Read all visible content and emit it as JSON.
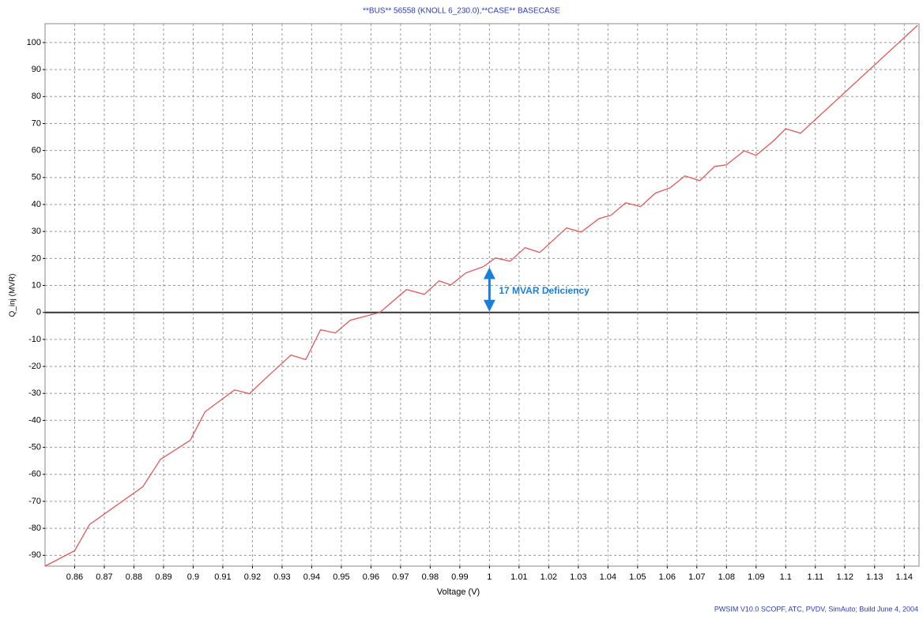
{
  "chart_data": {
    "type": "line",
    "title": "**BUS** 56558 (KNOLL  6_230.0),**CASE** BASECASE",
    "xlabel": "Voltage (V)",
    "ylabel": "Q_inj (MVR)",
    "footer": "PWSIM V10.0 SCOPF, ATC, PVDV, SimAuto; Build June 4, 2004",
    "xlim": [
      0.85,
      1.145
    ],
    "ylim": [
      -94,
      107
    ],
    "xticks": [
      0.86,
      0.87,
      0.88,
      0.89,
      0.9,
      0.91,
      0.92,
      0.93,
      0.94,
      0.95,
      0.96,
      0.97,
      0.98,
      0.99,
      1,
      1.01,
      1.02,
      1.03,
      1.04,
      1.05,
      1.06,
      1.07,
      1.08,
      1.09,
      1.1,
      1.11,
      1.12,
      1.13,
      1.14
    ],
    "yticks": [
      -90,
      -80,
      -70,
      -60,
      -50,
      -40,
      -30,
      -20,
      -10,
      0,
      10,
      20,
      30,
      40,
      50,
      60,
      70,
      80,
      90,
      100
    ],
    "grid": true,
    "series": [
      {
        "name": "Q_inj",
        "color": "#e05858",
        "x": [
          0.85,
          0.86,
          0.865,
          0.883,
          0.889,
          0.899,
          0.904,
          0.914,
          0.919,
          0.924,
          0.933,
          0.938,
          0.943,
          0.948,
          0.953,
          0.963,
          0.972,
          0.978,
          0.983,
          0.987,
          0.992,
          0.998,
          1.002,
          1.007,
          1.012,
          1.017,
          1.026,
          1.031,
          1.037,
          1.041,
          1.046,
          1.051,
          1.056,
          1.061,
          1.066,
          1.071,
          1.076,
          1.08,
          1.086,
          1.09,
          1.096,
          1.1,
          1.105,
          1.1445
        ],
        "values": [
          -94,
          -88.3,
          -78.6,
          -64.6,
          -54.4,
          -47.4,
          -36.8,
          -28.7,
          -30.1,
          -24.9,
          -15.8,
          -17.5,
          -6.4,
          -7.6,
          -2.9,
          0,
          8.5,
          6.7,
          11.7,
          10.2,
          14.6,
          17,
          20.2,
          19,
          24,
          22.2,
          31.3,
          29.8,
          34.8,
          36,
          40.6,
          39.2,
          44.2,
          46.2,
          50.6,
          48.8,
          54.1,
          54.7,
          59.9,
          58.2,
          63.7,
          68.1,
          66.4,
          106.4
        ]
      }
    ],
    "annotation": {
      "text": "17 MVAR Deficiency",
      "x": 1,
      "y_from": 0,
      "y_to": 17,
      "color": "#1a7fd6"
    }
  }
}
